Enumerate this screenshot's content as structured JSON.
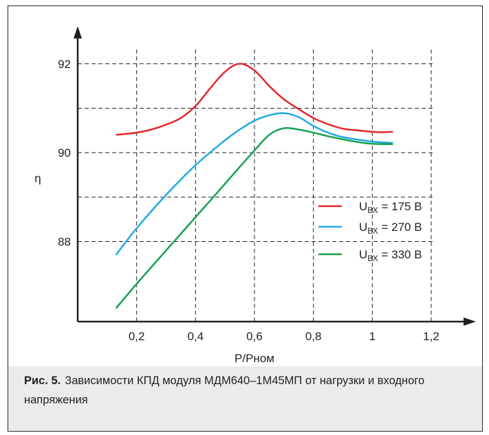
{
  "chart_data": {
    "type": "line",
    "xlabel": "P/Pном",
    "ylabel": "η",
    "xlim": [
      0,
      1.2
    ],
    "ylim": [
      86.2,
      92.8
    ],
    "x_ticks": [
      0.2,
      0.4,
      0.6,
      0.8,
      1,
      1.2
    ],
    "x_tick_labels": [
      "0,2",
      "0,4",
      "0,6",
      "0,8",
      "1",
      "1,2"
    ],
    "y_ticks": [
      88,
      90,
      92
    ],
    "y_tick_labels": [
      "88",
      "90",
      "92"
    ],
    "grid": true,
    "legend_position": "right",
    "series": [
      {
        "name_main": "U",
        "name_sub": "ВХ",
        "name_rest": " = 175 В",
        "color": "#e1252b",
        "x": [
          0.13,
          0.2,
          0.25,
          0.3,
          0.35,
          0.4,
          0.45,
          0.5,
          0.55,
          0.6,
          0.65,
          0.7,
          0.75,
          0.8,
          0.85,
          0.9,
          0.95,
          1.0,
          1.03,
          1.07
        ],
        "y": [
          90.4,
          90.45,
          90.52,
          90.63,
          90.78,
          91.05,
          91.45,
          91.82,
          92.0,
          91.85,
          91.5,
          91.2,
          90.98,
          90.78,
          90.64,
          90.54,
          90.5,
          90.47,
          90.46,
          90.47
        ]
      },
      {
        "name_main": "U",
        "name_sub": "ВХ",
        "name_rest": " = 270 В",
        "color": "#1fa9e1",
        "x": [
          0.13,
          0.2,
          0.3,
          0.4,
          0.5,
          0.55,
          0.6,
          0.65,
          0.7,
          0.75,
          0.8,
          0.85,
          0.9,
          1.0,
          1.07
        ],
        "y": [
          87.7,
          88.3,
          89.05,
          89.72,
          90.28,
          90.52,
          90.72,
          90.84,
          90.89,
          90.8,
          90.6,
          90.45,
          90.35,
          90.25,
          90.22
        ]
      },
      {
        "name_main": "U",
        "name_sub": "ВХ",
        "name_rest": " = 330 В",
        "color": "#15a050",
        "x": [
          0.13,
          0.2,
          0.3,
          0.4,
          0.5,
          0.55,
          0.6,
          0.65,
          0.7,
          0.75,
          0.8,
          0.85,
          0.9,
          0.95,
          1.0,
          1.07
        ],
        "y": [
          86.5,
          87.05,
          87.8,
          88.55,
          89.3,
          89.68,
          90.05,
          90.4,
          90.55,
          90.52,
          90.45,
          90.37,
          90.3,
          90.24,
          90.2,
          90.19
        ]
      }
    ]
  },
  "caption": {
    "label": "Рис. 5.",
    "text": "Зависимости КПД модуля МДМ640–1М45МП от нагрузки и входного напряжения"
  }
}
